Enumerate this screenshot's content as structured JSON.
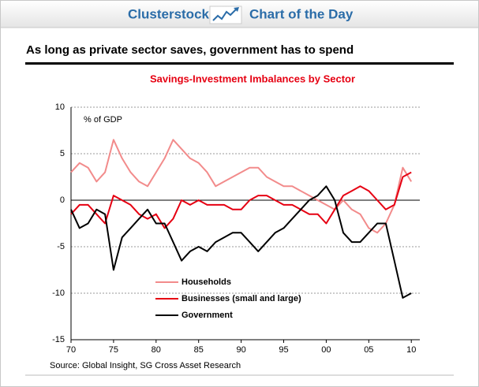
{
  "header": {
    "brand": "Clusterstock",
    "label": "Chart of the Day"
  },
  "chart_data": {
    "type": "line",
    "title": "As long as private sector saves, government has to spend",
    "subtitle": "Savings-Investment Imbalances by Sector",
    "ylabel": "% of GDP",
    "source": "Source: Global Insight, SG Cross Asset Research",
    "x": [
      1970,
      1971,
      1972,
      1973,
      1974,
      1975,
      1976,
      1977,
      1978,
      1979,
      1980,
      1981,
      1982,
      1983,
      1984,
      1985,
      1986,
      1987,
      1988,
      1989,
      1990,
      1991,
      1992,
      1993,
      1994,
      1995,
      1996,
      1997,
      1998,
      1999,
      2000,
      2001,
      2002,
      2003,
      2004,
      2005,
      2006,
      2007,
      2008,
      2009,
      2010
    ],
    "series": [
      {
        "name": "Households",
        "color": "#f28b8b",
        "values": [
          3,
          4,
          3.5,
          2,
          3,
          6.5,
          4.5,
          3,
          2,
          1.5,
          3,
          4.5,
          6.5,
          5.5,
          4.5,
          4,
          3,
          1.5,
          2,
          2.5,
          3,
          3.5,
          3.5,
          2.5,
          2,
          1.5,
          1.5,
          1,
          0.5,
          0,
          -0.5,
          -1,
          0,
          -1,
          -1.5,
          -3,
          -3.5,
          -2.5,
          -0.5,
          3.5,
          2
        ]
      },
      {
        "name": "Businesses (small and large)",
        "color": "#e60012",
        "values": [
          -1.5,
          -0.5,
          -0.5,
          -1.5,
          -2.5,
          0.5,
          0,
          -0.5,
          -1.5,
          -2,
          -1.5,
          -3,
          -2,
          0,
          -0.5,
          0,
          -0.5,
          -0.5,
          -0.5,
          -1,
          -1,
          0,
          0.5,
          0.5,
          0,
          -0.5,
          -0.5,
          -1,
          -1.5,
          -1.5,
          -2.5,
          -1,
          0.5,
          1,
          1.5,
          1,
          0,
          -1,
          -0.5,
          2.5,
          3
        ]
      },
      {
        "name": "Government",
        "color": "#000000",
        "values": [
          -1,
          -3,
          -2.5,
          -1,
          -1.5,
          -7.5,
          -4,
          -3,
          -2,
          -1,
          -2.5,
          -2.5,
          -4.5,
          -6.5,
          -5.5,
          -5,
          -5.5,
          -4.5,
          -4,
          -3.5,
          -3.5,
          -4.5,
          -5.5,
          -4.5,
          -3.5,
          -3,
          -2,
          -1,
          0,
          0.5,
          1.5,
          0,
          -3.5,
          -4.5,
          -4.5,
          -3.5,
          -2.5,
          -2.5,
          -6.5,
          -10.5,
          -10
        ]
      }
    ],
    "xlim": [
      1970,
      2011
    ],
    "ylim": [
      -15,
      10
    ],
    "xticks": [
      {
        "value": 1970,
        "label": "70"
      },
      {
        "value": 1975,
        "label": "75"
      },
      {
        "value": 1980,
        "label": "80"
      },
      {
        "value": 1985,
        "label": "85"
      },
      {
        "value": 1990,
        "label": "90"
      },
      {
        "value": 1995,
        "label": "95"
      },
      {
        "value": 2000,
        "label": "00"
      },
      {
        "value": 2005,
        "label": "05"
      },
      {
        "value": 2010,
        "label": "10"
      }
    ],
    "yticks": [
      10,
      5,
      0,
      -5,
      -10,
      -15
    ],
    "grid": true,
    "legend": "lower left"
  }
}
